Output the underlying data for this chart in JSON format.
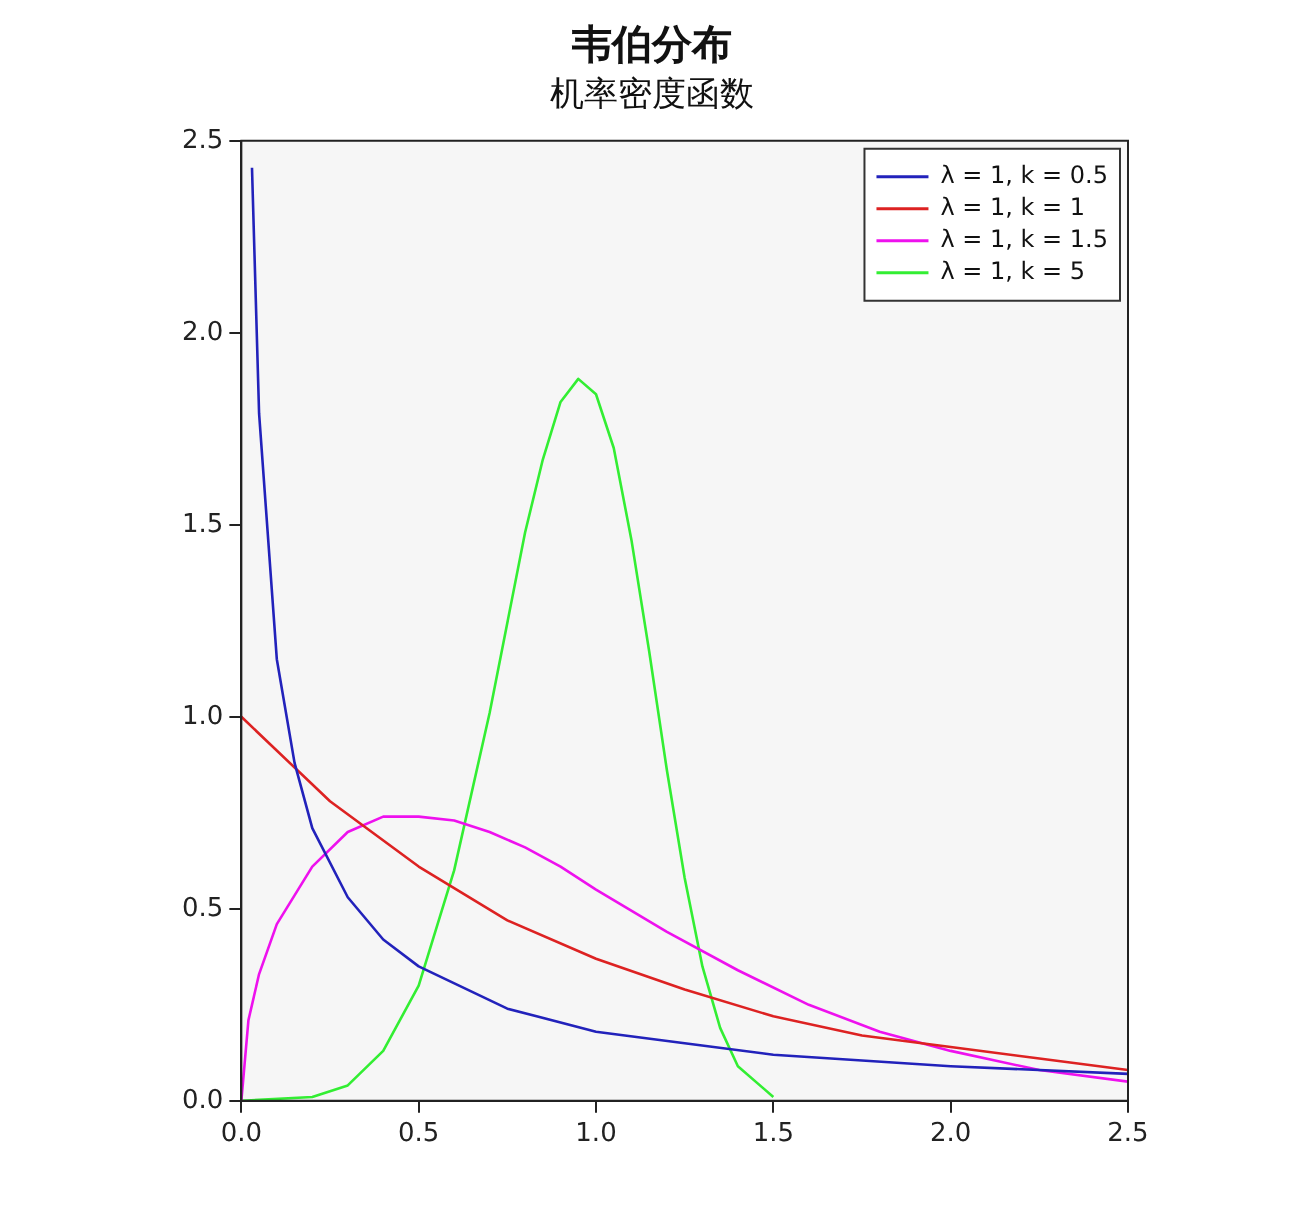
{
  "chart_data": {
    "type": "line",
    "title": "韦伯分布",
    "subtitle": "机率密度函数",
    "xlim": [
      0,
      2.5
    ],
    "xticks": [
      {
        "value": 0,
        "label": "0.0"
      },
      0.5,
      {
        "value": 1,
        "label": "1.0"
      },
      1.5,
      {
        "value": 2,
        "label": "2.0"
      },
      2.5
    ],
    "ylim": [
      0,
      2.5
    ],
    "yticks": [
      {
        "value": 0,
        "label": "0.0"
      },
      0.5,
      {
        "value": 1,
        "label": "1.0"
      },
      1.5,
      {
        "value": 2,
        "label": "2.0"
      },
      2.5
    ],
    "grid": false,
    "legend": "top right",
    "marker": "none",
    "line_style": "solid",
    "series": [
      {
        "name": "λ = 1, k = 0.5",
        "color": "#2222bb",
        "x": [
          0.03,
          0.05,
          0.1,
          0.15,
          0.2,
          0.3,
          0.4,
          0.5,
          0.75,
          1,
          1.25,
          1.5,
          2,
          2.5
        ],
        "values": [
          2.43,
          1.79,
          1.15,
          0.88,
          0.71,
          0.53,
          0.42,
          0.35,
          0.24,
          0.18,
          0.15,
          0.12,
          0.09,
          0.07
        ]
      },
      {
        "name": "λ = 1, k = 1",
        "color": "#dd2222",
        "x": [
          0,
          0.25,
          0.5,
          0.75,
          1,
          1.25,
          1.5,
          1.75,
          2,
          2.25,
          2.5
        ],
        "values": [
          1.0,
          0.78,
          0.61,
          0.47,
          0.37,
          0.29,
          0.22,
          0.17,
          0.14,
          0.11,
          0.08
        ]
      },
      {
        "name": "λ = 1, k = 1.5",
        "color": "#ee11ee",
        "x": [
          0,
          0.02,
          0.05,
          0.1,
          0.2,
          0.3,
          0.4,
          0.5,
          0.6,
          0.7,
          0.8,
          0.9,
          1,
          1.2,
          1.4,
          1.6,
          1.8,
          2,
          2.25,
          2.5
        ],
        "values": [
          0,
          0.21,
          0.33,
          0.46,
          0.61,
          0.7,
          0.74,
          0.74,
          0.73,
          0.7,
          0.66,
          0.61,
          0.55,
          0.44,
          0.34,
          0.25,
          0.18,
          0.13,
          0.08,
          0.05
        ]
      },
      {
        "name": "λ = 1, k = 5",
        "color": "#33ee33",
        "x": [
          0,
          0.2,
          0.3,
          0.4,
          0.5,
          0.6,
          0.7,
          0.8,
          0.85,
          0.9,
          0.95,
          1,
          1.05,
          1.1,
          1.15,
          1.2,
          1.25,
          1.3,
          1.35,
          1.4,
          1.5
        ],
        "values": [
          0,
          0.01,
          0.04,
          0.13,
          0.3,
          0.6,
          1.01,
          1.48,
          1.67,
          1.82,
          1.88,
          1.84,
          1.7,
          1.46,
          1.17,
          0.86,
          0.58,
          0.35,
          0.19,
          0.09,
          0.01
        ]
      }
    ]
  }
}
